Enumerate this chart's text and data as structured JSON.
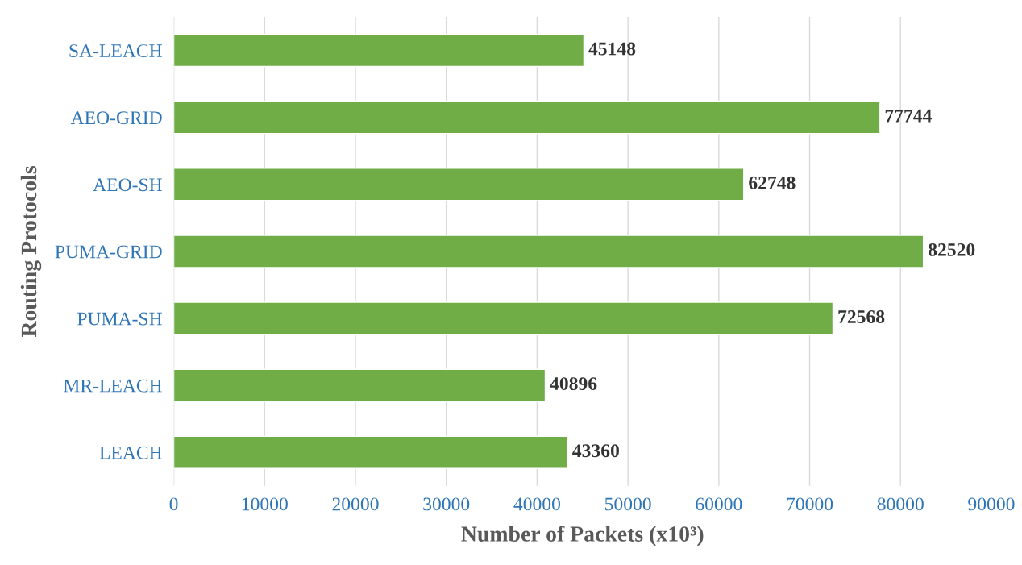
{
  "chart_data": {
    "type": "bar",
    "orientation": "horizontal",
    "xlabel": "Number of Packets (x10³)",
    "ylabel": "Routing Protocols",
    "categories": [
      "SA-LEACH",
      "AEO-GRID",
      "AEO-SH",
      "PUMA-GRID",
      "PUMA-SH",
      "MR-LEACH",
      "LEACH"
    ],
    "values": [
      45148,
      77744,
      62748,
      82520,
      72568,
      40896,
      43360
    ],
    "color": "#70ad47",
    "xlim": [
      0,
      90000
    ],
    "xticks": [
      0,
      10000,
      20000,
      30000,
      40000,
      50000,
      60000,
      70000,
      80000,
      90000
    ],
    "grid": "x",
    "data_labels": true,
    "legend": false
  }
}
